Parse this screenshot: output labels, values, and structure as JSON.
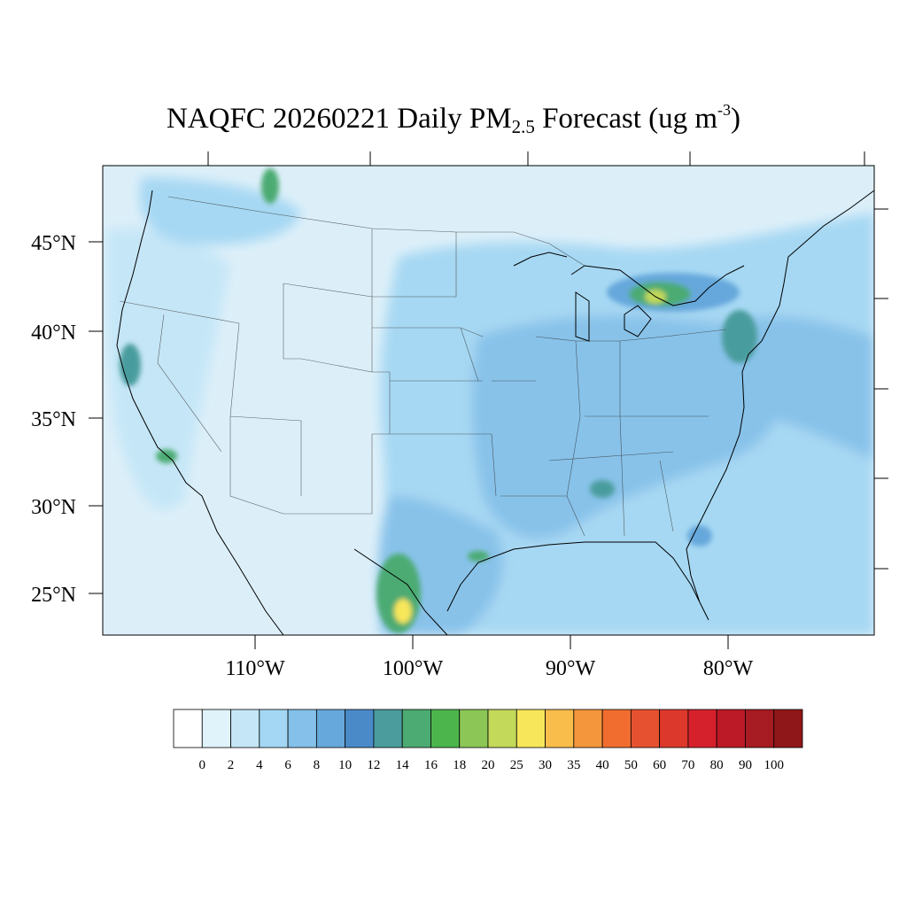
{
  "title": {
    "main": "NAQFC 20260221 Daily PM",
    "subscript": "2.5",
    "after": " Forecast (ug m",
    "superscript": "-3",
    "close": ")"
  },
  "map": {
    "projection": "lat-lon",
    "lon_range": [
      -121,
      -72
    ],
    "lat_range": [
      22.8,
      49.5
    ],
    "lat_ticks": [
      "45°N",
      "40°N",
      "35°N",
      "30°N",
      "25°N"
    ],
    "lon_ticks": [
      "110°W",
      "100°W",
      "90°W",
      "80°W"
    ],
    "background_color": "#dceff9",
    "outline_color": "#000000"
  },
  "colorbar": {
    "labels": [
      "0",
      "2",
      "4",
      "6",
      "8",
      "10",
      "12",
      "14",
      "16",
      "18",
      "20",
      "25",
      "30",
      "35",
      "40",
      "50",
      "60",
      "70",
      "80",
      "90",
      "100"
    ],
    "colors": [
      "#ffffff",
      "#e0f3fb",
      "#c4e6f7",
      "#a4d7f3",
      "#84c0e9",
      "#66a8dc",
      "#4a8ac9",
      "#4a9c9d",
      "#4cab72",
      "#4cb64c",
      "#8bc656",
      "#c2d95a",
      "#f7e65a",
      "#f8bd4b",
      "#f4963c",
      "#f06d2f",
      "#e65230",
      "#dc382c",
      "#d4212c",
      "#bc1a26",
      "#a71b23",
      "#8f1719"
    ]
  }
}
